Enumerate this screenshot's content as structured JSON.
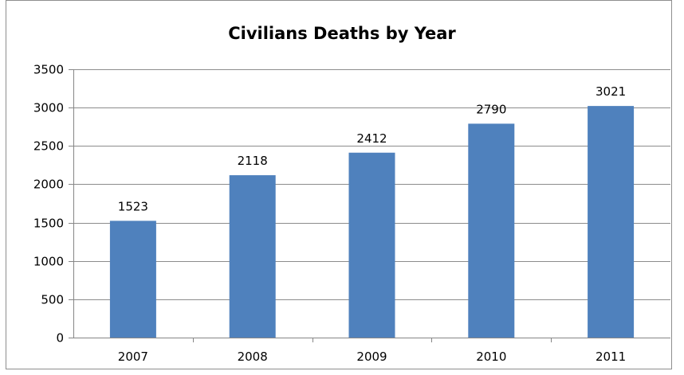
{
  "colors": {
    "bar": "#4F81BD",
    "grid": "#8c8c8c",
    "axis": "#868686"
  },
  "chart_data": {
    "type": "bar",
    "title": "Civilians Deaths by Year",
    "xlabel": "",
    "ylabel": "",
    "categories": [
      "2007",
      "2008",
      "2009",
      "2010",
      "2011"
    ],
    "values": [
      1523,
      2118,
      2412,
      2790,
      3021
    ],
    "data_labels": [
      "1523",
      "2118",
      "2412",
      "2790",
      "3021"
    ],
    "yticks": [
      0,
      500,
      1000,
      1500,
      2000,
      2500,
      3000,
      3500
    ],
    "ylim": [
      0,
      3500
    ],
    "grid": true,
    "legend": "none"
  }
}
